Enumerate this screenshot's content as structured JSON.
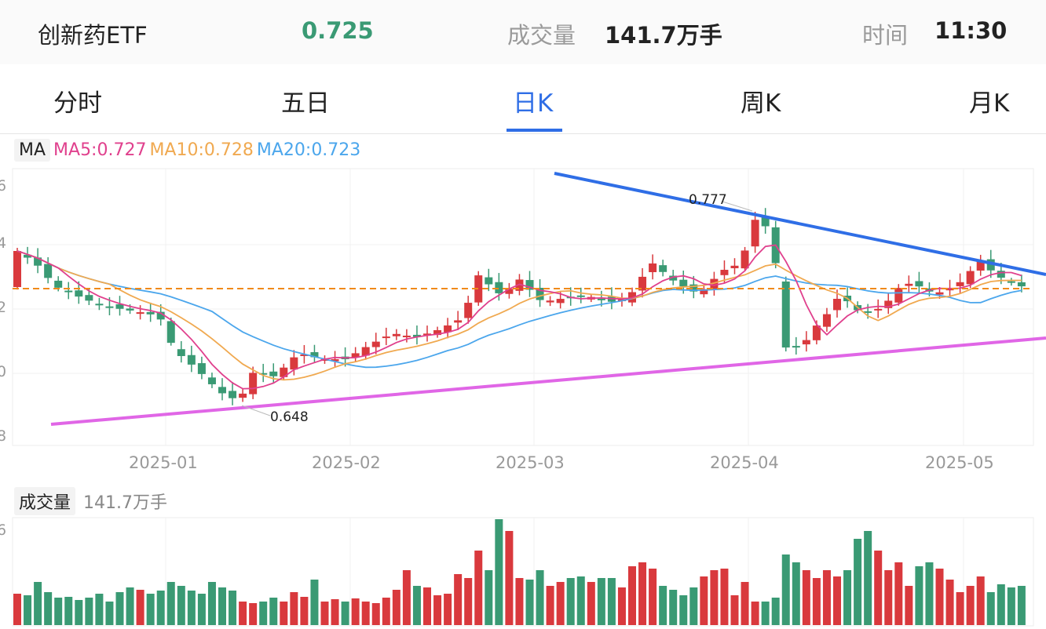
{
  "header": {
    "name": "创新药ETF",
    "price": "0.725",
    "volume_label": "成交量",
    "volume_value": "141.7万手",
    "time_label": "时间",
    "time_value": "11:30"
  },
  "tabs": [
    {
      "label": "分时",
      "active": false
    },
    {
      "label": "五日",
      "active": false
    },
    {
      "label": "日K",
      "active": true
    },
    {
      "label": "周K",
      "active": false
    },
    {
      "label": "月K",
      "active": false
    }
  ],
  "legend": {
    "ma_button": "MA",
    "ma5": "MA5:0.727",
    "ma10": "MA10:0.728",
    "ma20": "MA20:0.723"
  },
  "volume_legend": {
    "label": "成交量",
    "value": "141.7万手"
  },
  "colors": {
    "up": "#d9393d",
    "down": "#3a9a74",
    "ma5": "#e0408d",
    "ma10": "#f0a950",
    "ma20": "#4ba6ec",
    "resistance": "#2f6ee6",
    "support": "#e066e6",
    "current_price": "#f08a1a"
  },
  "chart_data": {
    "type": "candlestick",
    "x_labels": [
      "2025-01",
      "2025-02",
      "2025-03",
      "2025-04",
      "2025-05"
    ],
    "edge_ticks": [
      "6",
      "4",
      "2",
      "0",
      "8"
    ],
    "annotations": [
      {
        "text": "0.777",
        "kind": "high"
      },
      {
        "text": "0.648",
        "kind": "low"
      }
    ],
    "current_price": 0.725
  }
}
